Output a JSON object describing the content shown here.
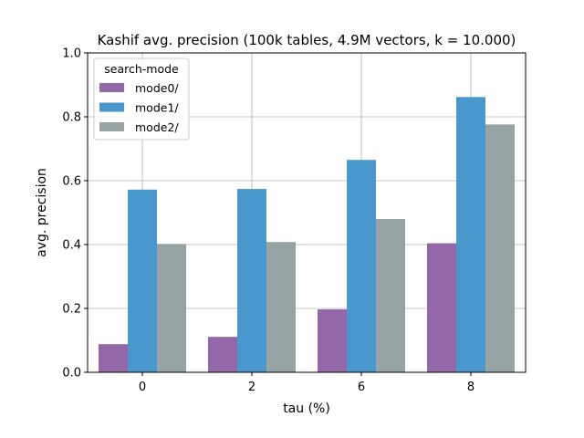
{
  "chart_data": {
    "type": "bar",
    "title": "Kashif avg. precision (100k tables, 4.9M vectors, k = 10.000)",
    "xlabel": "tau (%)",
    "ylabel": "avg. precision",
    "categories": [
      "0",
      "2",
      "6",
      "8"
    ],
    "series": [
      {
        "name": "mode0/",
        "color": "#9467a8",
        "values": [
          0.088,
          0.111,
          0.197,
          0.404
        ]
      },
      {
        "name": "mode1/",
        "color": "#4a97cd",
        "values": [
          0.572,
          0.574,
          0.665,
          0.862
        ]
      },
      {
        "name": "mode2/",
        "color": "#97a2a3",
        "values": [
          0.402,
          0.408,
          0.48,
          0.776
        ]
      }
    ],
    "ylim": [
      0,
      1.0
    ],
    "yticks": [
      "0.0",
      "0.2",
      "0.4",
      "0.6",
      "0.8",
      "1.0"
    ],
    "grid": true,
    "legend": {
      "title": "search-mode",
      "placement": "top-left"
    }
  }
}
